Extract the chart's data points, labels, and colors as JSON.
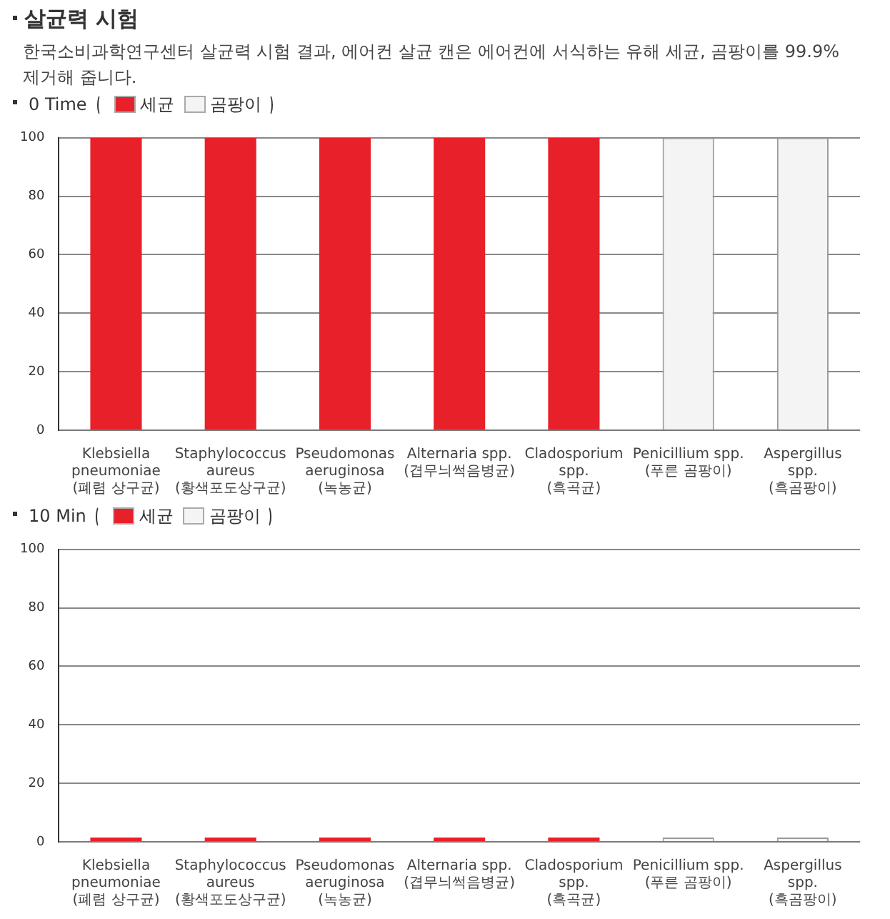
{
  "chart_data": [
    {
      "type": "bar",
      "title": "살균력 시험",
      "subtitle": "한국소비과학연구센터 살균력 시험 결과, 에어컨 살균 캔은 에어컨에 서식하는 유해 세균, 곰팡이를 99.9% 제거해 줍니다.",
      "legend_title": "0 Time",
      "legend": "top left",
      "categories": [
        "Klebsiella\npneumoniae\n(폐렴 상구균)",
        "Staphylococcus\naureus\n(황색포도상구균)",
        "Pseudomonas\naeruginosa\n(녹농균)",
        "Alternaria spp.\n(겹무늬썩음병균)",
        "Cladosporium\nspp.\n(흑곡균)",
        "Penicillium spp.\n(푸른 곰팡이)",
        "Aspergillus\nspp.\n(흑곰팡이)"
      ],
      "series": [
        {
          "name": "세균",
          "color": "#e8202a",
          "values": [
            100,
            100,
            100,
            100,
            100,
            null,
            null
          ]
        },
        {
          "name": "곰팡이",
          "color": "#f4f4f4",
          "values": [
            null,
            null,
            null,
            null,
            null,
            100,
            100
          ]
        }
      ],
      "ylim": [
        0,
        100
      ],
      "yticks": [
        0,
        20,
        40,
        60,
        80,
        100
      ],
      "grid": "y"
    },
    {
      "type": "bar",
      "legend_title": "10 Min",
      "legend": "top left",
      "categories": [
        "Klebsiella\npneumoniae\n(폐렴 상구균)",
        "Staphylococcus\naureus\n(황색포도상구균)",
        "Pseudomonas\naeruginosa\n(녹농균)",
        "Alternaria spp.\n(겹무늬썩음병균)",
        "Cladosporium\nspp.\n(흑곡균)",
        "Penicillium spp.\n(푸른 곰팡이)",
        "Aspergillus\nspp.\n(흑곰팡이)"
      ],
      "series": [
        {
          "name": "세균",
          "color": "#e8202a",
          "values": [
            0,
            0,
            0,
            0,
            0,
            null,
            null
          ]
        },
        {
          "name": "곰팡이",
          "color": "#f4f4f4",
          "values": [
            null,
            null,
            null,
            null,
            null,
            0,
            0
          ]
        }
      ],
      "ylim": [
        0,
        100
      ],
      "yticks": [
        0,
        20,
        40,
        60,
        80,
        100
      ],
      "grid": "y"
    }
  ]
}
